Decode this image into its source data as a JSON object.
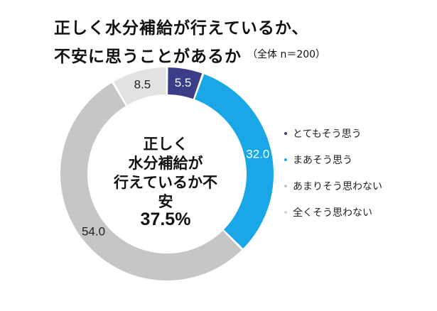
{
  "title": {
    "line1": "正しく水分補給が行えているか、",
    "line2": "不安に思うことがあるか",
    "subtitle": "（全体 n＝200）"
  },
  "chart_data": {
    "type": "pie",
    "donut": true,
    "slices": [
      {
        "label": "とてもそう思う",
        "value": 5.5,
        "color": "#3b3d87",
        "text_color": "#ffffff"
      },
      {
        "label": "まあそう思う",
        "value": 32.0,
        "color": "#1aa7e8",
        "text_color": "#ffffff"
      },
      {
        "label": "あまりそう思わない",
        "value": 54.0,
        "color": "#c6c6c6",
        "text_color": "#222222"
      },
      {
        "label": "全くそう思わない",
        "value": 8.5,
        "color": "#e2e2e2",
        "text_color": "#222222"
      }
    ],
    "center_text": "正しく\n水分補給が\n行えているか不安",
    "center_value": "37.5%",
    "legend_position": "right",
    "bullet_colors": [
      "#3b3d87",
      "#1aa7e8",
      "#c6c6c6",
      "#d6d6d6"
    ]
  }
}
